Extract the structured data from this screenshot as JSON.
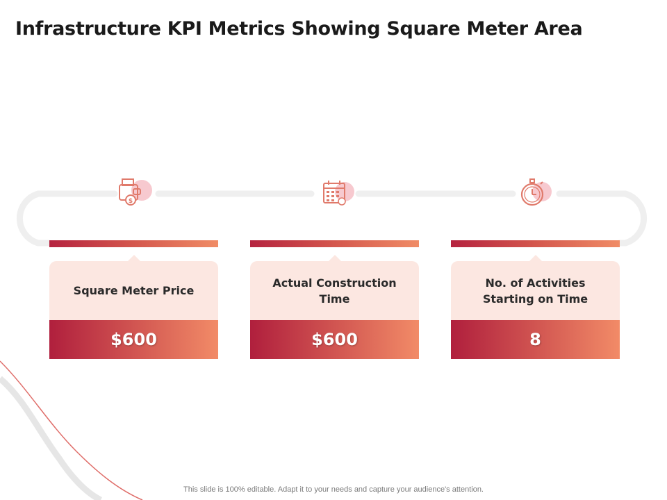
{
  "slide": {
    "title": "Infrastructure KPI Metrics Showing Square Meter Area",
    "footer": "This slide is 100% editable. Adapt it to your needs and capture your audience's attention."
  },
  "colors": {
    "accent_dark": "#b01f3d",
    "accent_light": "#f28b67",
    "label_bg": "#fce7e1",
    "track": "#efefef"
  },
  "kpis": [
    {
      "icon": "wallet-money-icon",
      "label": "Square Meter Price",
      "value": "$600"
    },
    {
      "icon": "calendar-icon",
      "label": "Actual Construction Time",
      "value": "$600"
    },
    {
      "icon": "stopwatch-icon",
      "label": "No. of Activities Starting on Time",
      "value": "8"
    }
  ]
}
